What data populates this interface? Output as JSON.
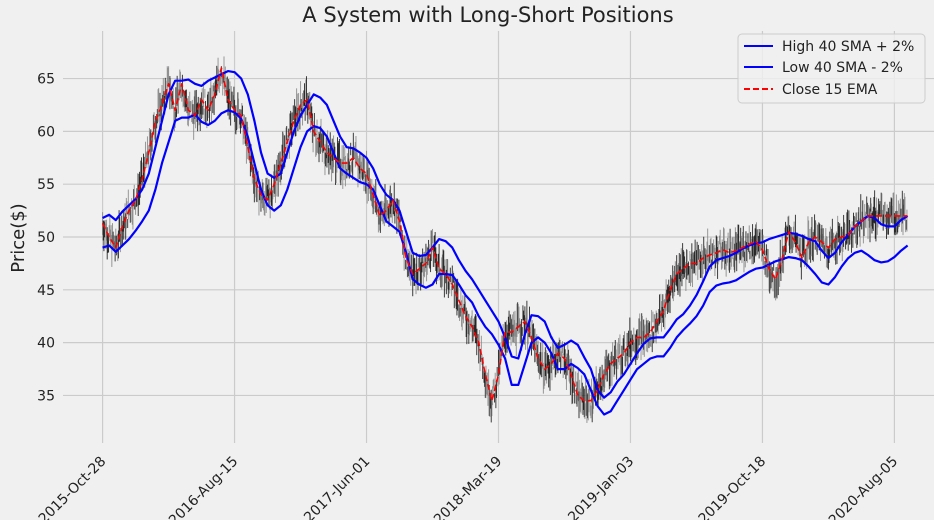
{
  "chart_data": {
    "type": "line",
    "title": "A System with Long-Short Positions",
    "xlabel": "",
    "ylabel": "Price($)",
    "ylim": [
      30.5,
      69.5
    ],
    "yticks": [
      35,
      40,
      45,
      50,
      55,
      60,
      65
    ],
    "x_tick_labels": [
      "2015-Oct-28",
      "2016-Aug-15",
      "2017-Jun-01",
      "2018-Mar-19",
      "2019-Jan-03",
      "2019-Oct-18",
      "2020-Aug-05"
    ],
    "x_tick_positions": [
      0,
      200,
      400,
      600,
      800,
      1000,
      1200
    ],
    "xlim": [
      -60,
      1260
    ],
    "grid": true,
    "legend_position": "top-right",
    "colors": {
      "background": "#f0f0f0",
      "grid": "#cbcbcb",
      "bands": "#0000ff",
      "ema": "#ff0000",
      "price": "#000000"
    },
    "series": [
      {
        "name": "High 40 SMA + 2%",
        "style": "solid",
        "color": "#0000ff",
        "x": [
          0,
          10,
          20,
          30,
          40,
          50,
          60,
          70,
          80,
          90,
          100,
          110,
          120,
          130,
          140,
          150,
          160,
          170,
          180,
          190,
          200,
          210,
          220,
          230,
          240,
          250,
          260,
          270,
          280,
          290,
          300,
          310,
          320,
          330,
          340,
          350,
          360,
          370,
          380,
          390,
          400,
          410,
          420,
          430,
          440,
          450,
          460,
          470,
          480,
          490,
          500,
          510,
          520,
          530,
          540,
          550,
          560,
          570,
          580,
          590,
          600,
          610,
          620,
          630,
          640,
          650,
          660,
          670,
          680,
          690,
          700,
          710,
          720,
          730,
          740,
          750,
          760,
          770,
          780,
          790,
          800,
          810,
          820,
          830,
          840,
          850,
          860,
          870,
          880,
          890,
          900,
          910,
          920,
          930,
          940,
          950,
          960,
          970,
          980,
          990,
          1000,
          1010,
          1020,
          1030,
          1040,
          1050,
          1060,
          1070,
          1080,
          1090,
          1100,
          1110,
          1120,
          1130,
          1140,
          1150,
          1160,
          1170,
          1180,
          1190,
          1200,
          1210,
          1220
        ],
        "values": [
          51.8,
          52.1,
          51.6,
          52.4,
          53.0,
          53.6,
          54.5,
          56.0,
          58.5,
          61.0,
          63.5,
          64.8,
          64.8,
          64.9,
          64.5,
          64.3,
          64.8,
          65.1,
          65.4,
          65.7,
          65.6,
          65.0,
          63.5,
          61.0,
          58.0,
          56.0,
          55.6,
          56.0,
          58.0,
          60.0,
          61.5,
          62.5,
          63.5,
          63.2,
          62.5,
          61.0,
          59.5,
          58.5,
          58.4,
          58.0,
          57.5,
          56.5,
          55.0,
          54.0,
          53.5,
          52.5,
          50.5,
          48.5,
          48.2,
          48.3,
          49.0,
          49.8,
          49.6,
          49.0,
          47.8,
          46.8,
          46.0,
          45.0,
          44.0,
          43.0,
          42.0,
          40.5,
          38.7,
          38.5,
          40.8,
          42.6,
          42.5,
          42.0,
          40.5,
          39.5,
          39.8,
          40.2,
          39.8,
          38.6,
          37.5,
          35.5,
          34.8,
          35.3,
          36.3,
          37.0,
          38.0,
          39.0,
          39.9,
          40.4,
          40.5,
          40.5,
          41.3,
          42.2,
          42.7,
          43.5,
          44.5,
          45.8,
          47.2,
          47.8,
          48.0,
          48.2,
          48.5,
          48.9,
          49.2,
          49.4,
          49.5,
          49.8,
          50.0,
          50.2,
          50.4,
          50.3,
          50.1,
          49.8,
          49.6,
          48.7,
          48.0,
          48.5,
          49.5,
          50.2,
          51.0,
          51.5,
          52.0,
          51.8,
          51.2,
          51.0,
          51.0,
          51.6,
          52.0
        ]
      },
      {
        "name": "Low 40 SMA - 2%",
        "style": "solid",
        "color": "#0000ff",
        "x": [
          0,
          10,
          20,
          30,
          40,
          50,
          60,
          70,
          80,
          90,
          100,
          110,
          120,
          130,
          140,
          150,
          160,
          170,
          180,
          190,
          200,
          210,
          220,
          230,
          240,
          250,
          260,
          270,
          280,
          290,
          300,
          310,
          320,
          330,
          340,
          350,
          360,
          370,
          380,
          390,
          400,
          410,
          420,
          430,
          440,
          450,
          460,
          470,
          480,
          490,
          500,
          510,
          520,
          530,
          540,
          550,
          560,
          570,
          580,
          590,
          600,
          610,
          620,
          630,
          640,
          650,
          660,
          670,
          680,
          690,
          700,
          710,
          720,
          730,
          740,
          750,
          760,
          770,
          780,
          790,
          800,
          810,
          820,
          830,
          840,
          850,
          860,
          870,
          880,
          890,
          900,
          910,
          920,
          930,
          940,
          950,
          960,
          970,
          980,
          990,
          1000,
          1010,
          1020,
          1030,
          1040,
          1050,
          1060,
          1070,
          1080,
          1090,
          1100,
          1110,
          1120,
          1130,
          1140,
          1150,
          1160,
          1170,
          1180,
          1190,
          1200,
          1210,
          1220
        ],
        "values": [
          49.0,
          49.2,
          48.6,
          49.2,
          49.8,
          50.6,
          51.5,
          52.5,
          54.5,
          57.0,
          59.0,
          61.0,
          61.3,
          61.3,
          61.6,
          60.9,
          60.6,
          61.0,
          61.7,
          62.0,
          61.8,
          61.2,
          59.5,
          57.0,
          54.5,
          53.0,
          52.5,
          53.0,
          54.5,
          56.5,
          58.5,
          60.0,
          60.5,
          60.3,
          59.5,
          58.0,
          56.5,
          56.0,
          55.6,
          55.2,
          55.0,
          54.5,
          53.0,
          51.5,
          51.0,
          50.5,
          48.5,
          46.0,
          45.5,
          45.2,
          45.5,
          46.5,
          46.5,
          46.4,
          45.5,
          44.5,
          43.8,
          42.5,
          41.5,
          40.8,
          39.8,
          38.5,
          36.0,
          36.0,
          38.0,
          40.0,
          40.5,
          40.0,
          39.0,
          37.5,
          37.5,
          38.0,
          37.6,
          37.0,
          35.5,
          34.0,
          33.2,
          33.5,
          34.5,
          35.5,
          36.5,
          37.5,
          38.0,
          38.5,
          38.7,
          38.7,
          39.5,
          40.5,
          41.2,
          41.8,
          42.5,
          43.5,
          44.8,
          45.4,
          45.6,
          45.7,
          45.9,
          46.3,
          46.7,
          47.0,
          47.1,
          47.4,
          47.7,
          47.9,
          48.1,
          48.0,
          47.8,
          47.2,
          46.5,
          45.7,
          45.5,
          46.2,
          47.2,
          48.0,
          48.5,
          48.7,
          48.3,
          47.8,
          47.6,
          47.7,
          48.1,
          48.7,
          49.2
        ]
      },
      {
        "name": "Close 15 EMA",
        "style": "dashed",
        "color": "#ff0000",
        "x": [
          0,
          10,
          20,
          30,
          40,
          50,
          60,
          70,
          80,
          90,
          100,
          110,
          120,
          130,
          140,
          150,
          160,
          170,
          180,
          190,
          200,
          210,
          220,
          230,
          240,
          250,
          260,
          270,
          280,
          290,
          300,
          310,
          320,
          330,
          340,
          350,
          360,
          370,
          380,
          390,
          400,
          410,
          420,
          430,
          440,
          450,
          460,
          470,
          480,
          490,
          500,
          510,
          520,
          530,
          540,
          550,
          560,
          570,
          580,
          590,
          600,
          610,
          620,
          630,
          640,
          650,
          660,
          670,
          680,
          690,
          700,
          710,
          720,
          730,
          740,
          750,
          760,
          770,
          780,
          790,
          800,
          810,
          820,
          830,
          840,
          850,
          860,
          870,
          880,
          890,
          900,
          910,
          920,
          930,
          940,
          950,
          960,
          970,
          980,
          990,
          1000,
          1010,
          1020,
          1030,
          1040,
          1050,
          1060,
          1070,
          1080,
          1090,
          1100,
          1110,
          1120,
          1130,
          1140,
          1150,
          1160,
          1170,
          1180,
          1190,
          1200,
          1210,
          1220
        ],
        "values": [
          51.3,
          50.0,
          49.0,
          51.0,
          52.5,
          53.5,
          55.5,
          58.0,
          61.0,
          62.5,
          64.5,
          62.0,
          64.5,
          62.0,
          61.5,
          63.0,
          62.0,
          63.5,
          66.0,
          63.0,
          62.0,
          61.5,
          58.5,
          55.5,
          54.0,
          53.5,
          55.0,
          57.0,
          59.0,
          61.0,
          62.5,
          63.0,
          60.0,
          59.0,
          58.0,
          57.5,
          57.0,
          57.0,
          57.5,
          56.5,
          56.0,
          54.0,
          52.0,
          52.5,
          53.5,
          51.5,
          48.0,
          46.5,
          47.0,
          47.5,
          49.0,
          47.0,
          46.5,
          45.5,
          44.0,
          42.5,
          41.5,
          40.0,
          37.0,
          34.5,
          37.0,
          41.0,
          41.0,
          41.5,
          42.0,
          40.5,
          38.5,
          37.5,
          38.0,
          39.0,
          38.5,
          37.0,
          35.0,
          34.5,
          34.5,
          35.5,
          37.0,
          38.0,
          38.5,
          39.0,
          40.0,
          40.5,
          40.5,
          41.0,
          42.0,
          43.0,
          45.0,
          46.5,
          47.0,
          47.5,
          47.5,
          48.0,
          48.3,
          48.5,
          48.8,
          48.5,
          48.7,
          49.0,
          49.3,
          49.6,
          48.8,
          47.0,
          46.0,
          48.0,
          50.5,
          49.5,
          48.0,
          49.5,
          50.0,
          49.5,
          49.0,
          49.8,
          50.0,
          50.2,
          51.0,
          51.5,
          52.0,
          52.0,
          52.0,
          52.0,
          52.0,
          52.0,
          52.0
        ]
      }
    ]
  }
}
